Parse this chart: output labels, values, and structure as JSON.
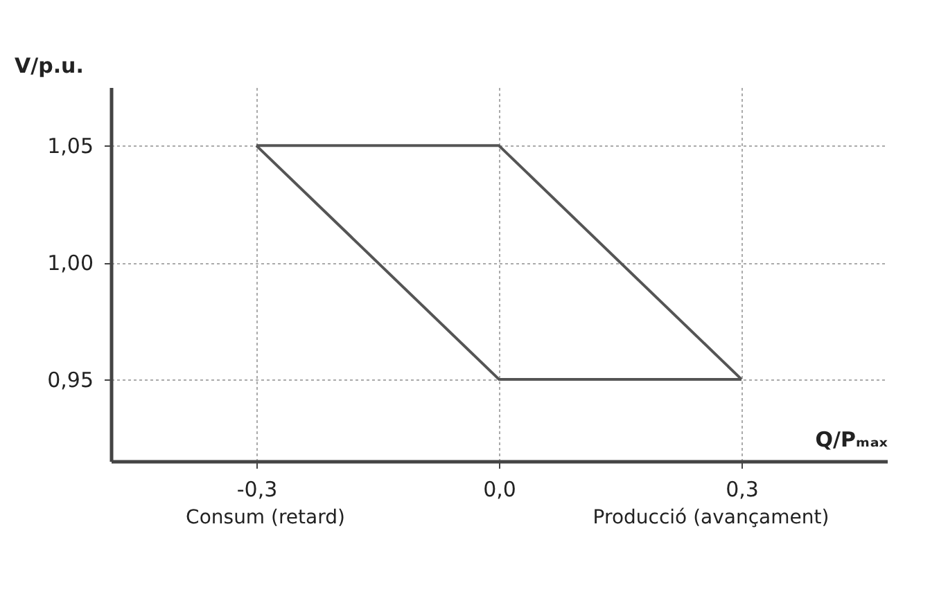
{
  "chart_data": {
    "type": "line",
    "x": [
      -0.3,
      0.0,
      0.3
    ],
    "series": [
      {
        "color": "#555555",
        "values": [
          1.05,
          1.05,
          0.95
        ]
      },
      {
        "color": "#555555",
        "values": [
          1.05,
          0.95,
          0.95
        ]
      }
    ],
    "xlabel": "Q/Pₘₐₓ",
    "ylabel": "V/p.u.",
    "xlim": [
      -0.48,
      0.48
    ],
    "ylim": [
      0.915,
      1.075
    ],
    "xticks": [
      {
        "value": -0.3,
        "label": "-0,3"
      },
      {
        "value": 0,
        "label": "0,0"
      },
      {
        "value": 0.3,
        "label": "0,3"
      }
    ],
    "yticks": [
      {
        "value": 0.95,
        "label": "0,95"
      },
      {
        "value": 1.0,
        "label": "1,00"
      },
      {
        "value": 1.05,
        "label": "1,05"
      }
    ],
    "grid": true,
    "marker": "none",
    "line_style": "solid",
    "annotations": [
      "Consum (retard)",
      "Producció (avançament)"
    ]
  }
}
